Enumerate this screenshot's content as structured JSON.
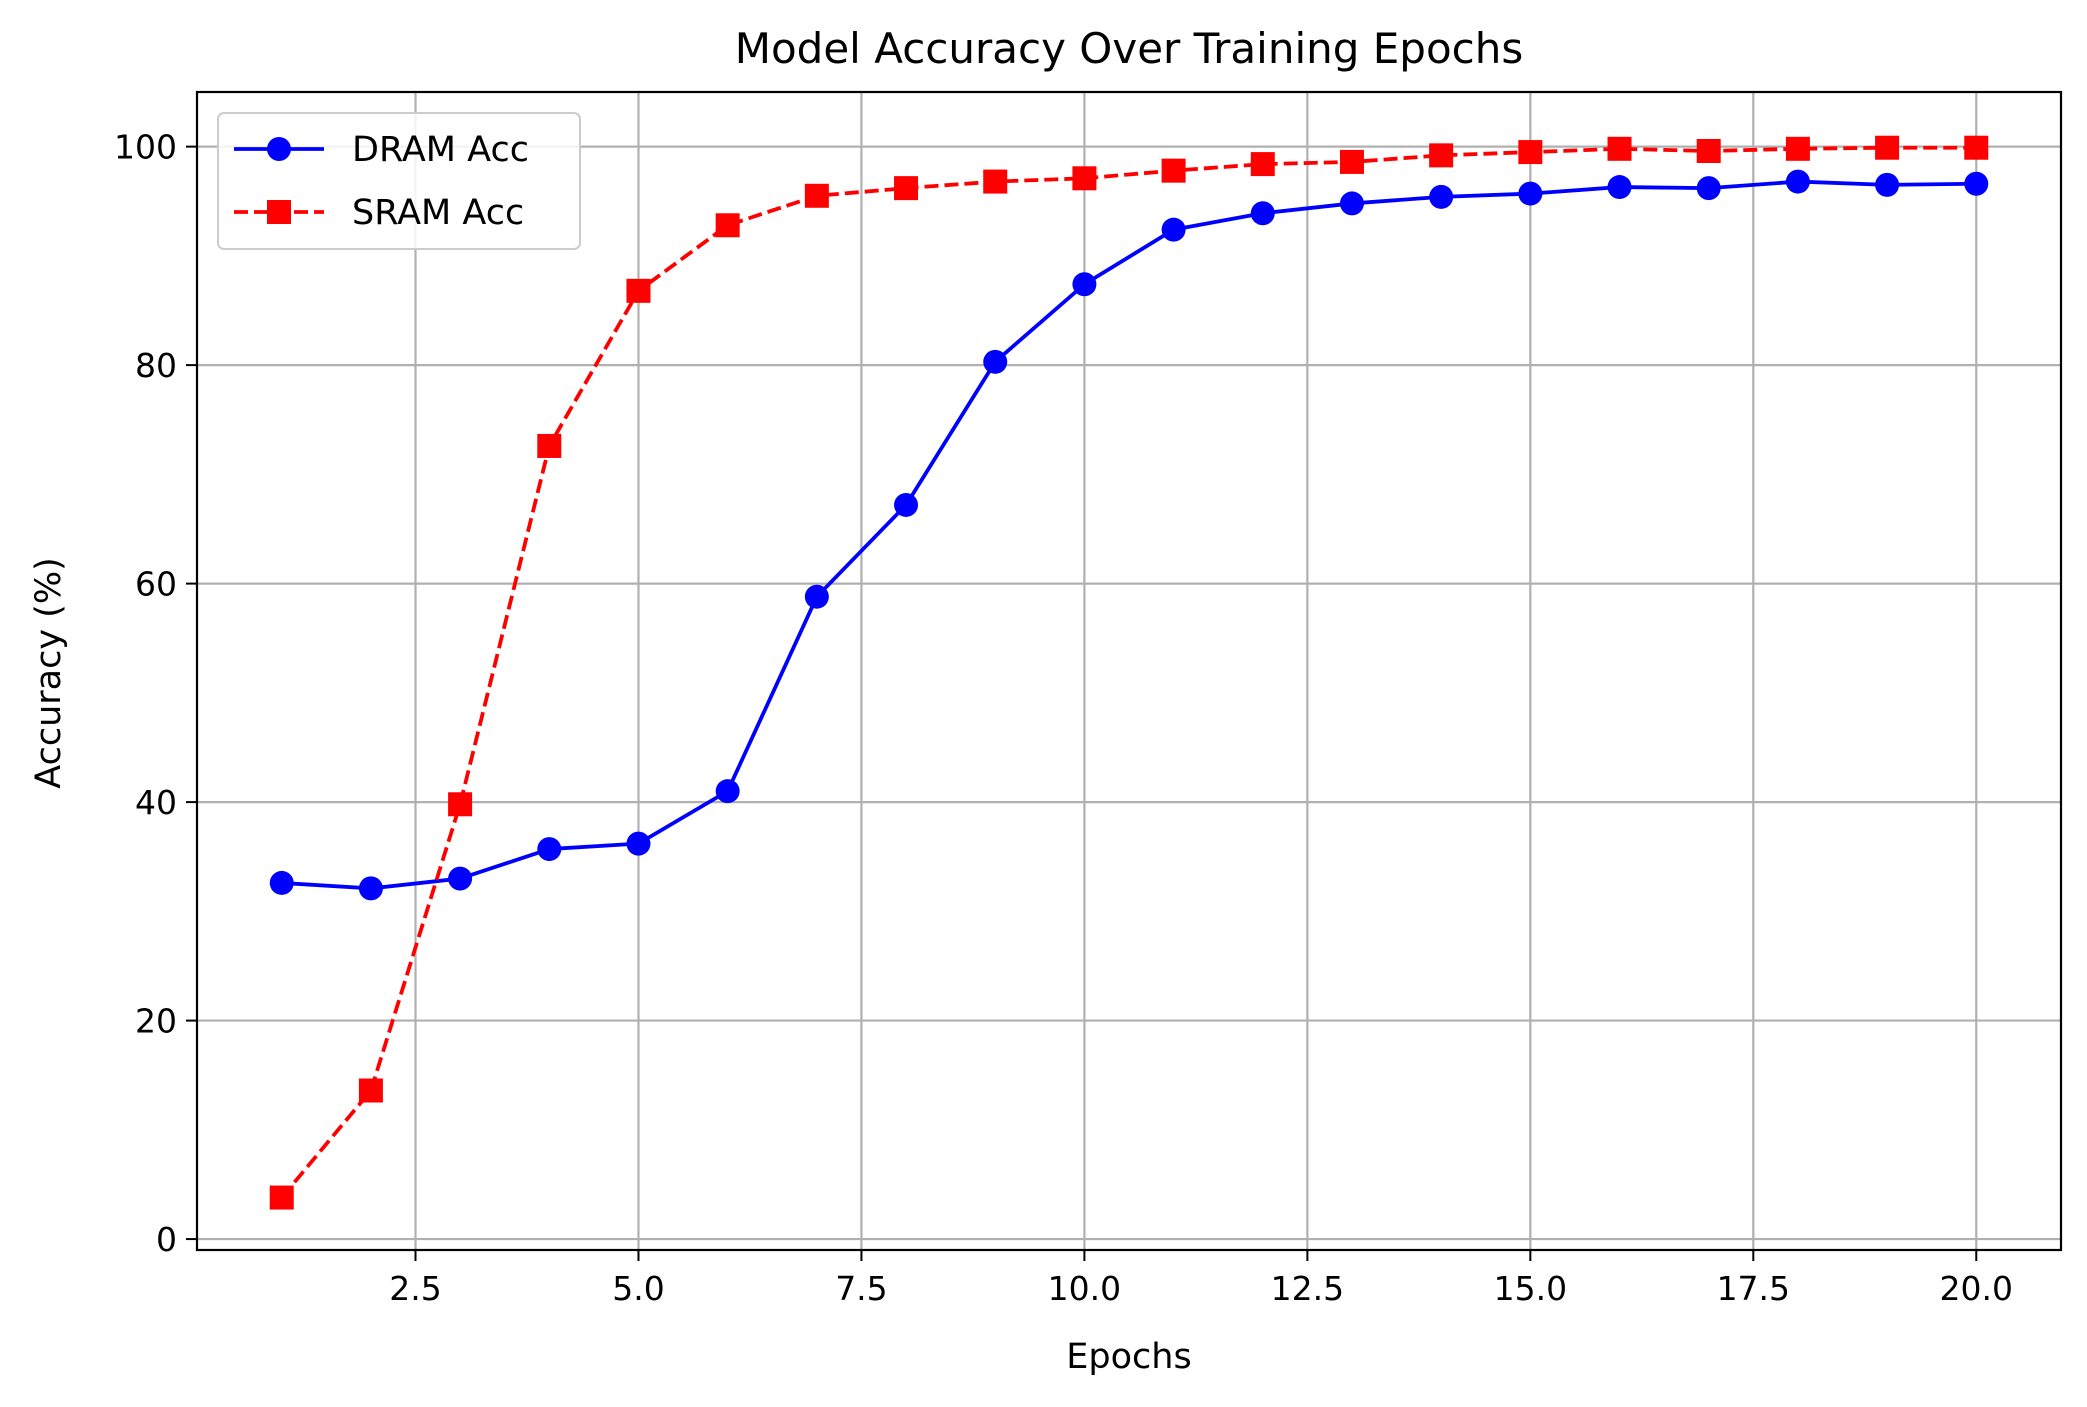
{
  "chart_data": {
    "type": "line",
    "title": "Model Accuracy Over Training Epochs",
    "xlabel": "Epochs",
    "ylabel": "Accuracy (%)",
    "xlim": [
      0.05,
      20.95
    ],
    "ylim": [
      -1,
      105
    ],
    "x_ticks": [
      2.5,
      5.0,
      7.5,
      10.0,
      12.5,
      15.0,
      17.5,
      20.0
    ],
    "x_tick_labels": [
      "2.5",
      "5.0",
      "7.5",
      "10.0",
      "12.5",
      "15.0",
      "17.5",
      "20.0"
    ],
    "y_ticks": [
      0,
      20,
      40,
      60,
      80,
      100
    ],
    "y_tick_labels": [
      "0",
      "20",
      "40",
      "60",
      "80",
      "100"
    ],
    "grid": true,
    "legend_position": "upper-left",
    "x": [
      1,
      2,
      3,
      4,
      5,
      6,
      7,
      8,
      9,
      10,
      11,
      12,
      13,
      14,
      15,
      16,
      17,
      18,
      19,
      20
    ],
    "series": [
      {
        "name": "DRAM Acc",
        "color": "#0000ff",
        "line_style": "solid",
        "marker": "circle",
        "values": [
          32.6,
          32.1,
          33.0,
          35.7,
          36.2,
          41.0,
          58.8,
          67.2,
          80.3,
          87.4,
          92.4,
          93.9,
          94.8,
          95.4,
          95.7,
          96.3,
          96.2,
          96.8,
          96.5,
          96.6
        ]
      },
      {
        "name": "SRAM Acc",
        "color": "#ff0000",
        "line_style": "dashed",
        "marker": "square",
        "values": [
          3.8,
          13.6,
          39.8,
          72.6,
          86.8,
          92.8,
          95.5,
          96.2,
          96.8,
          97.1,
          97.8,
          98.4,
          98.6,
          99.2,
          99.5,
          99.8,
          99.6,
          99.8,
          99.9,
          99.9
        ]
      }
    ]
  }
}
